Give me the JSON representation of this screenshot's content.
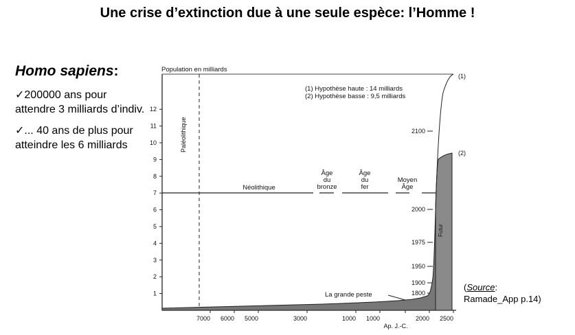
{
  "title": "Une crise d’extinction due à une seule espèce: l’Homme !",
  "left": {
    "heading": "Homo sapiens",
    "heading_colon": ":",
    "bullets": [
      "✓200000 ans pour attendre 3 milliards d’indiv.",
      "✓... 40 ans de plus pour atteindre les 6 milliards"
    ]
  },
  "source": {
    "label": "Source",
    "colon": ":",
    "ref": "Ramade_App p.14)",
    "open_paren": "("
  },
  "chart_data": {
    "type": "area",
    "ylabel": "Population en milliards",
    "xlabel": "Ap. J.-C.",
    "y_ticks": [
      1,
      2,
      3,
      4,
      5,
      6,
      7,
      8,
      9,
      10,
      11,
      12
    ],
    "x_tick_labels": [
      "7000",
      "6000",
      "5000",
      "3000",
      "1000",
      "1000",
      "2000",
      "2500"
    ],
    "year_scale_ticks": [
      "1800",
      "1900",
      "1950",
      "1975",
      "2000",
      "2100"
    ],
    "legend": [
      "(1) Hypothèse haute : 14 milliards",
      "(2) Hypothèse basse : 9,5 milliards"
    ],
    "curve_end_labels": [
      "(1)",
      "(2)"
    ],
    "annotations": {
      "paleolithic": "Paléolithique",
      "neolithic": "Néolithique",
      "bronze": [
        "Âge",
        "du",
        "bronze"
      ],
      "iron": [
        "Âge",
        "du",
        "fer"
      ],
      "middle_ages": [
        "Moyen",
        "Âge"
      ],
      "plague": "La grande peste",
      "future": "Futur"
    },
    "series": [
      {
        "name": "Population",
        "x": [
          -7000,
          -5000,
          -3000,
          -1000,
          1,
          1000,
          1300,
          1400,
          1800,
          1900,
          1950,
          1975,
          2000
        ],
        "values": [
          0.01,
          0.03,
          0.05,
          0.1,
          0.2,
          0.3,
          0.4,
          0.35,
          1.0,
          1.6,
          2.5,
          4.0,
          6.0
        ]
      },
      {
        "name": "(1)",
        "x": [
          2000,
          2050,
          2100,
          2500
        ],
        "values": [
          6.0,
          10.0,
          12.0,
          14.0
        ]
      },
      {
        "name": "(2)",
        "x": [
          2000,
          2050,
          2100,
          2500
        ],
        "values": [
          6.0,
          8.5,
          9.2,
          9.5
        ]
      }
    ]
  }
}
